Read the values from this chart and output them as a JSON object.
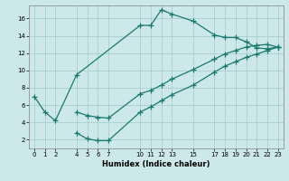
{
  "xlabel": "Humidex (Indice chaleur)",
  "bg_color": "#cce8e8",
  "line_color": "#1a7a6e",
  "grid_color": "#aacece",
  "xlim": [
    -0.5,
    23.5
  ],
  "ylim": [
    1,
    17.5
  ],
  "xticks": [
    0,
    1,
    2,
    4,
    5,
    6,
    7,
    10,
    11,
    12,
    13,
    15,
    17,
    18,
    19,
    20,
    21,
    22,
    23
  ],
  "yticks": [
    2,
    4,
    6,
    8,
    10,
    12,
    14,
    16
  ],
  "line1_x": [
    0,
    1,
    2,
    4,
    10,
    11,
    12,
    13,
    15,
    17,
    18,
    19,
    20,
    21,
    22,
    23
  ],
  "line1_y": [
    7.0,
    5.2,
    4.2,
    9.5,
    15.2,
    15.2,
    17.0,
    16.5,
    15.7,
    14.1,
    13.8,
    13.8,
    13.3,
    12.6,
    12.5,
    12.7
  ],
  "line2_x": [
    4,
    5,
    6,
    7,
    10,
    11,
    12,
    13,
    15,
    17,
    18,
    19,
    20,
    21,
    22,
    23
  ],
  "line2_y": [
    2.8,
    2.1,
    1.9,
    1.9,
    5.2,
    5.8,
    6.5,
    7.2,
    8.3,
    9.8,
    10.5,
    11.0,
    11.5,
    11.9,
    12.3,
    12.7
  ],
  "line3_x": [
    4,
    5,
    6,
    7,
    10,
    11,
    12,
    13,
    15,
    17,
    18,
    19,
    20,
    21,
    22,
    23
  ],
  "line3_y": [
    5.2,
    4.8,
    4.6,
    4.5,
    7.3,
    7.7,
    8.3,
    9.0,
    10.1,
    11.3,
    11.9,
    12.3,
    12.7,
    12.9,
    13.0,
    12.7
  ]
}
